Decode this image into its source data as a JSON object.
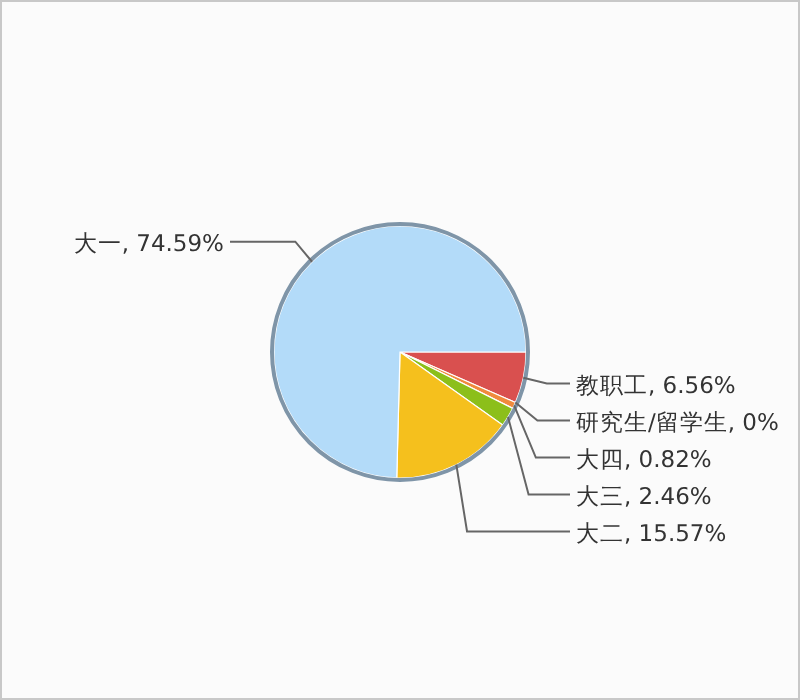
{
  "chart_data": {
    "type": "pie",
    "categories": [
      "教职工",
      "研究生/留学生",
      "大四",
      "大三",
      "大二",
      "大一"
    ],
    "values": [
      6.56,
      0,
      0.82,
      2.46,
      15.57,
      74.59
    ],
    "value_labels": [
      "6.56%",
      "0%",
      "0.82%",
      "2.46%",
      "15.57%",
      "74.59%"
    ],
    "colors": [
      "#d9504f",
      null,
      "#f08a3c",
      "#8cbf1a",
      "#f5c01d",
      "#b3dbf9"
    ]
  }
}
